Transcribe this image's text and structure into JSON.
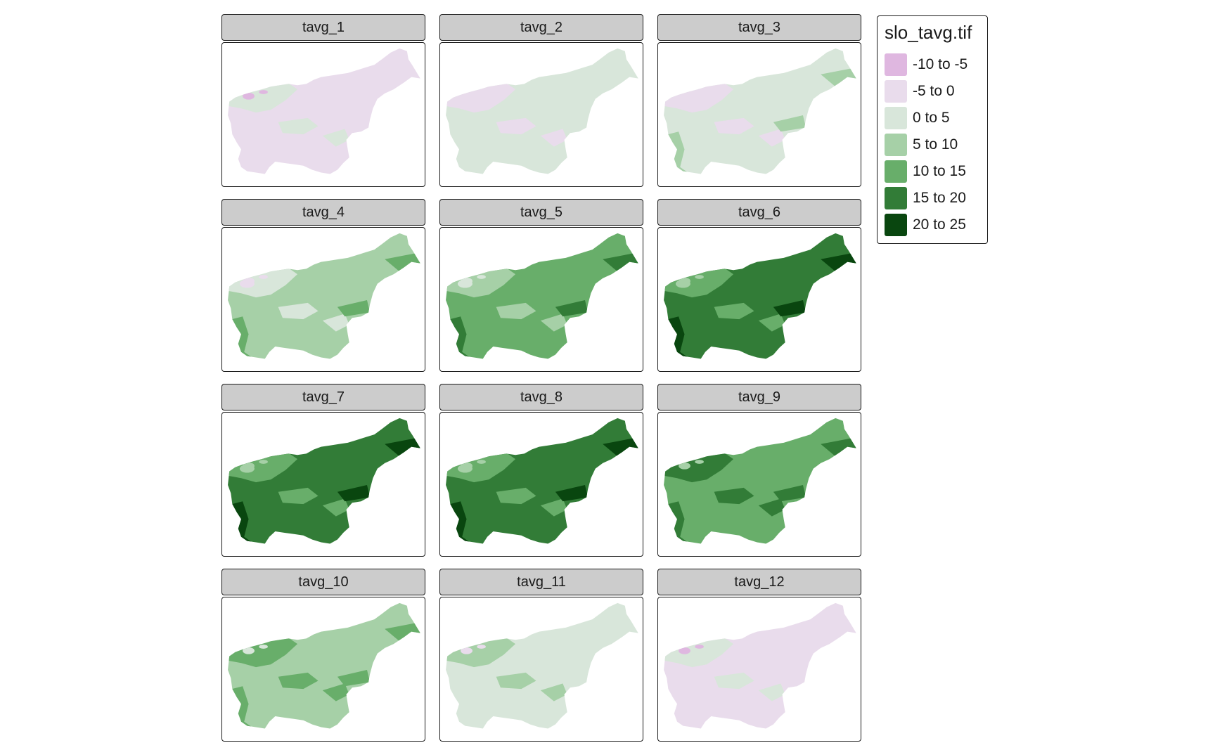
{
  "legend": {
    "title": "slo_tavg.tif",
    "classes": [
      {
        "label": "-10 to -5",
        "color": "#dfb7e0"
      },
      {
        "label": "-5 to 0",
        "color": "#e9dcec"
      },
      {
        "label": "0 to 5",
        "color": "#d8e6da"
      },
      {
        "label": "5 to 10",
        "color": "#a6d0a7"
      },
      {
        "label": "10 to 15",
        "color": "#68ae6a"
      },
      {
        "label": "15 to 20",
        "color": "#327c37"
      },
      {
        "label": "20 to 25",
        "color": "#09460f"
      }
    ]
  },
  "panels": [
    {
      "name": "tavg_1",
      "base": 1,
      "top": 2,
      "low": 0,
      "high": null
    },
    {
      "name": "tavg_2",
      "base": 2,
      "top": 1,
      "low": null,
      "high": null
    },
    {
      "name": "tavg_3",
      "base": 2,
      "top": 1,
      "low": null,
      "high": 3
    },
    {
      "name": "tavg_4",
      "base": 3,
      "top": 2,
      "low": 1,
      "high": 4
    },
    {
      "name": "tavg_5",
      "base": 4,
      "top": 3,
      "low": 2,
      "high": 5
    },
    {
      "name": "tavg_6",
      "base": 5,
      "top": 4,
      "low": 3,
      "high": 6
    },
    {
      "name": "tavg_7",
      "base": 5,
      "top": 4,
      "low": 3,
      "high": 6
    },
    {
      "name": "tavg_8",
      "base": 5,
      "top": 4,
      "low": 3,
      "high": 6
    },
    {
      "name": "tavg_9",
      "base": 4,
      "top": 5,
      "low": 3,
      "high": 5
    },
    {
      "name": "tavg_10",
      "base": 3,
      "top": 4,
      "low": 2,
      "high": 4
    },
    {
      "name": "tavg_11",
      "base": 2,
      "top": 3,
      "low": 1,
      "high": null
    },
    {
      "name": "tavg_12",
      "base": 1,
      "top": 2,
      "low": 0,
      "high": null
    }
  ]
}
